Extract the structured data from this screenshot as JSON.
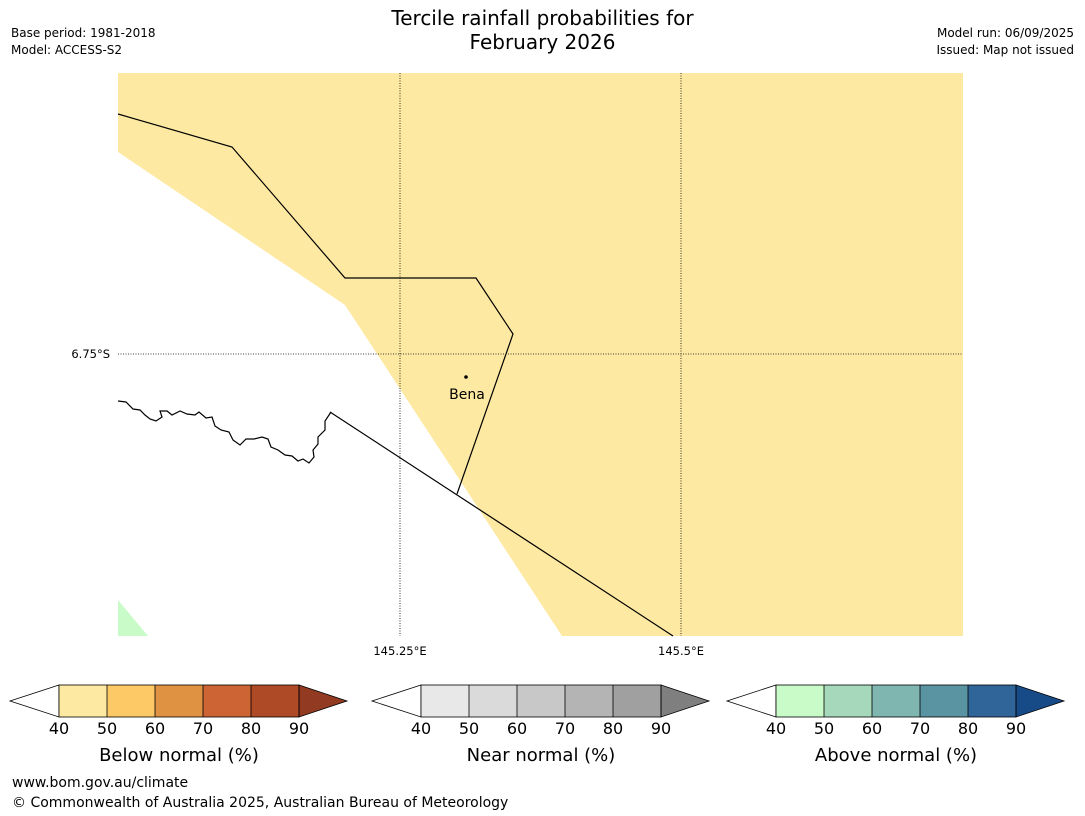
{
  "title_line1": "Tercile rainfall probabilities for",
  "title_line2": "February 2026",
  "base_period": "Base period: 1981-2018",
  "model": "Model: ACCESS-S2",
  "model_run": "Model run: 06/09/2025",
  "issued": "Issued: Map not issued",
  "map": {
    "latitude_label": "6.75°S",
    "longitude_labels": [
      "145.25°E",
      "145.5°E"
    ],
    "place": "Bena",
    "colors": {
      "below_50": "#fee9a3",
      "above_40_50": "#c9fbc8",
      "boundary": "#000000",
      "background": "#ffffff"
    }
  },
  "colorbars": [
    {
      "label": "Below normal (%)",
      "ticks": [
        "40",
        "50",
        "60",
        "70",
        "80",
        "90"
      ],
      "colors": [
        "#ffffff",
        "#fee9a3",
        "#fdc966",
        "#e09243",
        "#cc6533",
        "#ae4a26",
        "#923a22"
      ]
    },
    {
      "label": "Near normal (%)",
      "ticks": [
        "40",
        "50",
        "60",
        "70",
        "80",
        "90"
      ],
      "colors": [
        "#ffffff",
        "#e8e8e8",
        "#dadada",
        "#c8c8c8",
        "#b4b4b4",
        "#a0a0a0",
        "#7f7f7f"
      ]
    },
    {
      "label": "Above normal (%)",
      "ticks": [
        "40",
        "50",
        "60",
        "70",
        "80",
        "90"
      ],
      "colors": [
        "#ffffff",
        "#c9fbc8",
        "#a6d9bb",
        "#80b6b0",
        "#5a93a2",
        "#2f6598",
        "#174b88"
      ]
    }
  ],
  "footer": {
    "url": "www.bom.gov.au/climate",
    "copyright": "© Commonwealth of Australia 2025, Australian Bureau of Meteorology"
  }
}
